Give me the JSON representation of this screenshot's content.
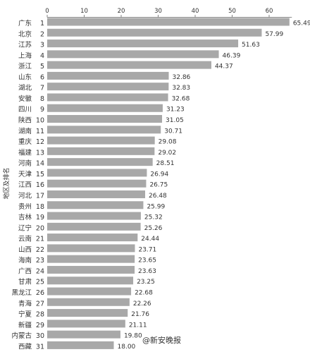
{
  "chart_data": {
    "type": "bar",
    "orientation": "horizontal",
    "ylabel": "地区及排名",
    "xlim": [
      0,
      65
    ],
    "x_ticks": [
      0,
      10,
      20,
      30,
      40,
      50,
      60
    ],
    "x_axis_position": "top",
    "grid": false,
    "bar_color": "#a8a8a8",
    "categories": [
      "广东",
      "北京",
      "江苏",
      "上海",
      "浙江",
      "山东",
      "湖北",
      "安徽",
      "四川",
      "陕西",
      "湖南",
      "重庆",
      "福建",
      "河南",
      "天津",
      "江西",
      "河北",
      "贵州",
      "吉林",
      "辽宁",
      "云南",
      "山西",
      "海南",
      "广西",
      "甘肃",
      "黑龙江",
      "青海",
      "宁夏",
      "新疆",
      "内蒙古",
      "西藏"
    ],
    "ranks": [
      "1",
      "2",
      "3",
      "4",
      "5",
      "6",
      "7",
      "8",
      "9",
      "10",
      "11",
      "12",
      "13",
      "14",
      "15",
      "16",
      "17",
      "18",
      "19",
      "20",
      "21",
      "22",
      "23",
      "24",
      "25",
      "26",
      "27",
      "28",
      "29",
      "30",
      "31"
    ],
    "values": [
      65.49,
      57.99,
      51.63,
      46.39,
      44.37,
      32.86,
      32.83,
      32.68,
      31.23,
      31.05,
      30.71,
      29.08,
      29.02,
      28.51,
      26.94,
      26.75,
      26.48,
      25.99,
      25.32,
      25.26,
      24.44,
      23.71,
      23.65,
      23.63,
      23.25,
      22.68,
      22.26,
      21.76,
      21.11,
      19.8,
      18.0
    ]
  },
  "watermark": "@新安晚报"
}
